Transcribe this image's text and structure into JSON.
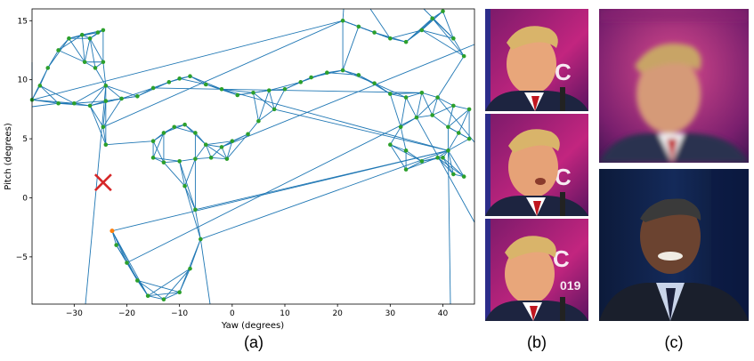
{
  "panels": {
    "a": {
      "caption": "(a)"
    },
    "b": {
      "caption": "(b)"
    },
    "c": {
      "caption": "(c)"
    }
  },
  "chart_data": {
    "type": "scatter",
    "title": "",
    "xlabel": "Yaw (degrees)",
    "ylabel": "Pitch (degrees)",
    "xlim": [
      -38,
      46
    ],
    "ylim": [
      -9,
      16
    ],
    "xticks": [
      "-30",
      "-20",
      "-10",
      "0",
      "10",
      "20",
      "30",
      "40"
    ],
    "yticks": [
      "15",
      "10",
      "5",
      "0",
      "-5"
    ],
    "grid": false,
    "mesh_color": "#1f77b4",
    "point_color": "#2ca02c",
    "marker": {
      "shape": "x",
      "color": "#d62728",
      "x": -24.5,
      "y": 1.3
    },
    "highlight_point": {
      "color": "#ff7f0e",
      "x": -22.8,
      "y": -2.8
    },
    "points": [
      [
        -38,
        8.3
      ],
      [
        -36.5,
        9.5
      ],
      [
        -35,
        11
      ],
      [
        -33,
        12.5
      ],
      [
        -31,
        13.5
      ],
      [
        -28.5,
        13.8
      ],
      [
        -27,
        13.5
      ],
      [
        -25.5,
        14
      ],
      [
        -24.5,
        14.2
      ],
      [
        -33,
        8
      ],
      [
        -30,
        8
      ],
      [
        -27,
        7.8
      ],
      [
        -24,
        8.2
      ],
      [
        -21,
        8.4
      ],
      [
        -18,
        8.6
      ],
      [
        -15,
        9.3
      ],
      [
        -12,
        9.8
      ],
      [
        -10,
        10.1
      ],
      [
        -8,
        10.3
      ],
      [
        -5,
        9.6
      ],
      [
        -2,
        9.2
      ],
      [
        1,
        8.7
      ],
      [
        4,
        8.9
      ],
      [
        7,
        9.1
      ],
      [
        10,
        9.2
      ],
      [
        13,
        9.8
      ],
      [
        15,
        10.2
      ],
      [
        18,
        10.6
      ],
      [
        21,
        10.8
      ],
      [
        24,
        10.4
      ],
      [
        27,
        9.7
      ],
      [
        30,
        8.8
      ],
      [
        33,
        8.5
      ],
      [
        36,
        8.9
      ],
      [
        39,
        8.5
      ],
      [
        42,
        7.8
      ],
      [
        45,
        7.5
      ],
      [
        21,
        15
      ],
      [
        24,
        14.5
      ],
      [
        27,
        14
      ],
      [
        30,
        13.5
      ],
      [
        33,
        13.2
      ],
      [
        36,
        14.2
      ],
      [
        38,
        15.2
      ],
      [
        40,
        15.8
      ],
      [
        42,
        13.5
      ],
      [
        44,
        12
      ],
      [
        -24.5,
        11.5
      ],
      [
        -24,
        9.5
      ],
      [
        -26,
        11
      ],
      [
        -28,
        11.5
      ],
      [
        -24.5,
        6
      ],
      [
        -24,
        4.5
      ],
      [
        -15,
        4.8
      ],
      [
        -13,
        5.5
      ],
      [
        -11,
        6
      ],
      [
        -9,
        6.2
      ],
      [
        -7,
        5.5
      ],
      [
        -5,
        4.5
      ],
      [
        -2,
        4.3
      ],
      [
        0,
        4.8
      ],
      [
        3,
        5.4
      ],
      [
        5,
        6.5
      ],
      [
        8,
        7.5
      ],
      [
        -15,
        3.4
      ],
      [
        -13,
        3
      ],
      [
        -10,
        3.1
      ],
      [
        -7,
        3.3
      ],
      [
        -4,
        3.4
      ],
      [
        -1,
        3.3
      ],
      [
        -9,
        1
      ],
      [
        -7,
        -1
      ],
      [
        -6,
        -3.5
      ],
      [
        -8,
        -6
      ],
      [
        -10,
        -8
      ],
      [
        -13,
        -8.6
      ],
      [
        -16,
        -8.3
      ],
      [
        -18,
        -7
      ],
      [
        -20,
        -5.5
      ],
      [
        -22,
        -4
      ],
      [
        -22.8,
        -2.8
      ],
      [
        33,
        2.4
      ],
      [
        36,
        3.1
      ],
      [
        39,
        3.4
      ],
      [
        41,
        4
      ],
      [
        43,
        5.5
      ],
      [
        45,
        5
      ],
      [
        44,
        1.8
      ],
      [
        42,
        2
      ],
      [
        40,
        3.4
      ],
      [
        32,
        6
      ],
      [
        35,
        6.8
      ],
      [
        38,
        7
      ],
      [
        41,
        6
      ],
      [
        33,
        4
      ],
      [
        30,
        4.5
      ]
    ]
  }
}
